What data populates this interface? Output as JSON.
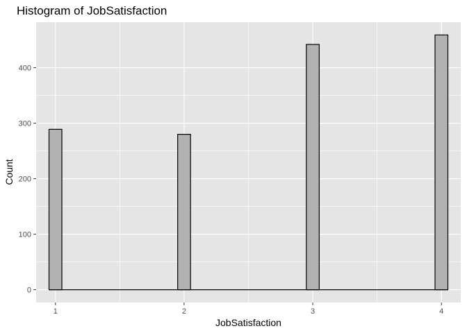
{
  "chart_data": {
    "type": "bar",
    "title": "Histogram of JobSatisfaction",
    "xlabel": "JobSatisfaction",
    "ylabel": "Count",
    "xlim": [
      0.85,
      4.15
    ],
    "ylim": [
      -23,
      482
    ],
    "x_ticks": [
      1,
      2,
      3,
      4
    ],
    "y_ticks": [
      0,
      100,
      200,
      300,
      400
    ],
    "bin_width": 0.1,
    "bins": [
      {
        "center": 1.0,
        "value": 289
      },
      {
        "center": 2.0,
        "value": 280
      },
      {
        "center": 3.0,
        "value": 442
      },
      {
        "center": 4.0,
        "value": 459
      }
    ],
    "baseline_range": [
      0.95,
      4.05
    ],
    "grid": true,
    "legend": "none",
    "colors": {
      "panel_background": "#e5e5e5",
      "grid_line": "#ffffff",
      "bar_fill": "#b2b2b2",
      "bar_outline": "#000000"
    }
  }
}
